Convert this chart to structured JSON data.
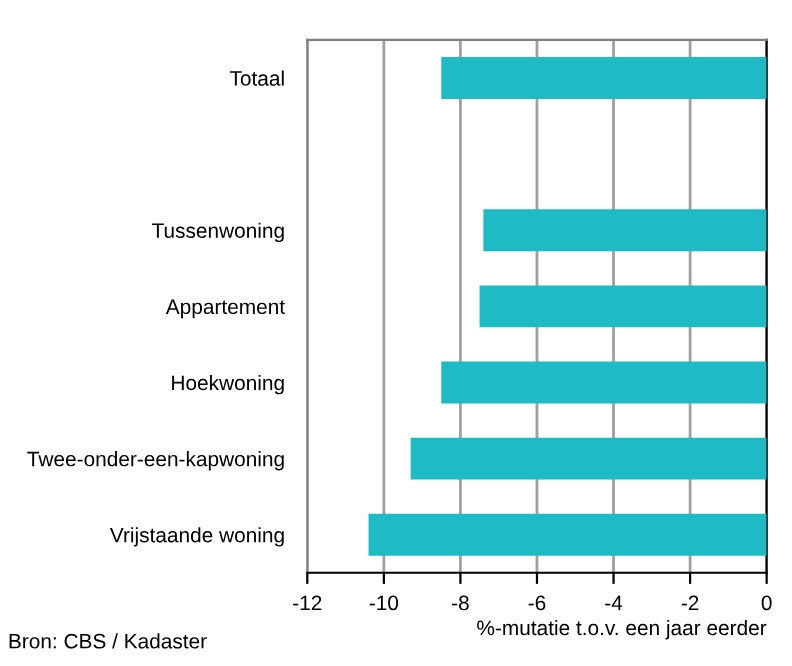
{
  "chart_data": {
    "type": "bar",
    "orientation": "horizontal",
    "categories": [
      "Totaal",
      null,
      "Tussenwoning",
      "Appartement",
      "Hoekwoning",
      "Twee-onder-een-kapwoning",
      "Vrijstaande woning"
    ],
    "values": [
      -8.5,
      null,
      -7.4,
      -7.5,
      -8.5,
      -9.3,
      -10.4
    ],
    "color": "#1fbbc4",
    "xlim": [
      -12,
      0
    ],
    "xticks": [
      -12,
      -10,
      -8,
      -6,
      -4,
      -2,
      0
    ],
    "xlabel": "%-mutatie t.o.v. een jaar eerder",
    "grid": "x",
    "annotations": [
      "Bron: CBS / Kadaster"
    ]
  }
}
